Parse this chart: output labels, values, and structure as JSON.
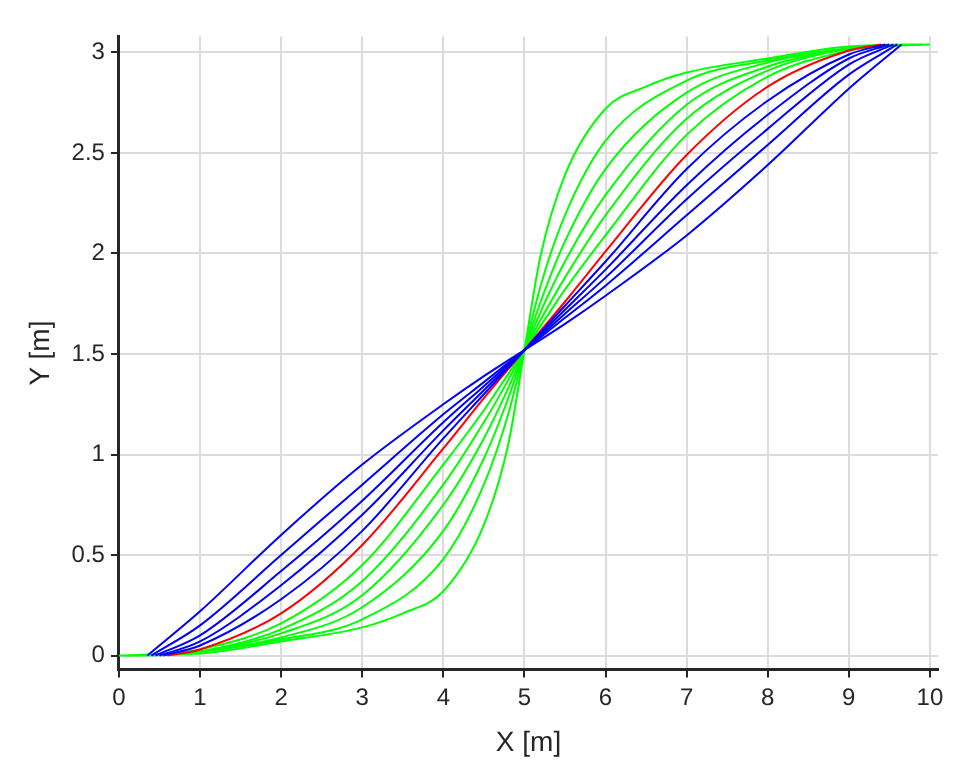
{
  "chart_data": {
    "type": "line",
    "xlabel": "X [m]",
    "ylabel": "Y [m]",
    "xlim": [
      0,
      10.1
    ],
    "xticks": [
      0,
      1,
      2,
      3,
      4,
      5,
      6,
      7,
      8,
      9,
      10
    ],
    "ylim": [
      -0.07,
      3.08
    ],
    "yticks": [
      0,
      0.5,
      1,
      1.5,
      2,
      2.5,
      3
    ],
    "grid": true,
    "legend": false,
    "marker": "none",
    "line_style": "solid",
    "series": [
      {
        "color": "#0000ff",
        "x": [
          0.35,
          1,
          2,
          3,
          4,
          4.5,
          5,
          5.5,
          6,
          7,
          8,
          9,
          9.65
        ],
        "values": [
          0,
          0.22,
          0.6,
          0.95,
          1.25,
          1.39,
          1.52,
          1.65,
          1.79,
          2.09,
          2.44,
          2.82,
          3.04
        ]
      },
      {
        "color": "#0000ff",
        "x": [
          0.4,
          1,
          2,
          3,
          4,
          4.5,
          5,
          5.5,
          6,
          7,
          8,
          9,
          9.6
        ],
        "values": [
          0,
          0.15,
          0.5,
          0.85,
          1.2,
          1.36,
          1.52,
          1.68,
          1.84,
          2.19,
          2.54,
          2.89,
          3.04
        ]
      },
      {
        "color": "#0000ff",
        "x": [
          0.45,
          1,
          2,
          3,
          4,
          4.5,
          5,
          5.5,
          6,
          7,
          8,
          9,
          9.55
        ],
        "values": [
          0,
          0.1,
          0.42,
          0.77,
          1.16,
          1.34,
          1.52,
          1.7,
          1.88,
          2.27,
          2.62,
          2.94,
          3.04
        ]
      },
      {
        "color": "#0000ff",
        "x": [
          0.5,
          1,
          2,
          3,
          4,
          4.5,
          5,
          5.5,
          6,
          7,
          8,
          9,
          9.5
        ],
        "values": [
          0,
          0.07,
          0.35,
          0.7,
          1.12,
          1.32,
          1.52,
          1.72,
          1.92,
          2.34,
          2.69,
          2.97,
          3.04
        ]
      },
      {
        "color": "#0000ff",
        "x": [
          0.55,
          1,
          2,
          3,
          4,
          4.5,
          5,
          5.5,
          6,
          7,
          8,
          9,
          9.45
        ],
        "values": [
          0,
          0.05,
          0.28,
          0.62,
          1.08,
          1.3,
          1.52,
          1.74,
          1.96,
          2.42,
          2.76,
          2.99,
          3.04
        ]
      },
      {
        "color": "#ff0000",
        "x": [
          0.6,
          1,
          2,
          3,
          4,
          4.5,
          5,
          5.5,
          6,
          7,
          8,
          9,
          9.4
        ],
        "values": [
          0,
          0.03,
          0.21,
          0.55,
          1.03,
          1.28,
          1.52,
          1.76,
          2.01,
          2.49,
          2.83,
          3.01,
          3.04
        ]
      },
      {
        "color": "#00ff00",
        "x": [
          0.5,
          1,
          2,
          3,
          4,
          4.5,
          4.8,
          5,
          5.2,
          5.5,
          6,
          7,
          8,
          9,
          9.5
        ],
        "values": [
          0,
          0.03,
          0.16,
          0.45,
          0.95,
          1.22,
          1.4,
          1.52,
          1.64,
          1.82,
          2.09,
          2.59,
          2.88,
          3.01,
          3.04
        ]
      },
      {
        "color": "#00ff00",
        "x": [
          0.4,
          1,
          2,
          3,
          4,
          4.5,
          4.8,
          5,
          5.2,
          5.5,
          6,
          7,
          8,
          9,
          9.6
        ],
        "values": [
          0,
          0.02,
          0.13,
          0.37,
          0.85,
          1.16,
          1.37,
          1.52,
          1.67,
          1.88,
          2.19,
          2.67,
          2.91,
          3.02,
          3.04
        ]
      },
      {
        "color": "#00ff00",
        "x": [
          0.3,
          1,
          2,
          3,
          4,
          4.5,
          4.8,
          5,
          5.2,
          5.5,
          6,
          7,
          8,
          9,
          9.7
        ],
        "values": [
          0,
          0.02,
          0.11,
          0.3,
          0.75,
          1.08,
          1.33,
          1.52,
          1.71,
          1.96,
          2.29,
          2.74,
          2.93,
          3.02,
          3.04
        ]
      },
      {
        "color": "#00ff00",
        "x": [
          0.2,
          1,
          2,
          3,
          4,
          4.5,
          4.8,
          5,
          5.2,
          5.5,
          6,
          7,
          8,
          9,
          9.8
        ],
        "values": [
          0,
          0.02,
          0.09,
          0.24,
          0.62,
          0.98,
          1.28,
          1.52,
          1.76,
          2.06,
          2.42,
          2.8,
          2.95,
          3.02,
          3.04
        ]
      },
      {
        "color": "#00ff00",
        "x": [
          0.1,
          1,
          2,
          3,
          4,
          4.5,
          4.8,
          5,
          5.2,
          5.5,
          6,
          7,
          8,
          9,
          9.9
        ],
        "values": [
          0,
          0.02,
          0.08,
          0.18,
          0.48,
          0.85,
          1.2,
          1.52,
          1.84,
          2.19,
          2.56,
          2.86,
          2.96,
          3.02,
          3.04
        ]
      },
      {
        "color": "#00ff00",
        "x": [
          0,
          1,
          2,
          3,
          3.5,
          4,
          4.5,
          4.8,
          5,
          5.2,
          5.5,
          6,
          6.5,
          7,
          8,
          9,
          10
        ],
        "values": [
          0,
          0.01,
          0.07,
          0.14,
          0.21,
          0.32,
          0.65,
          1.05,
          1.52,
          1.99,
          2.39,
          2.72,
          2.83,
          2.9,
          2.97,
          3.03,
          3.04
        ]
      }
    ]
  }
}
